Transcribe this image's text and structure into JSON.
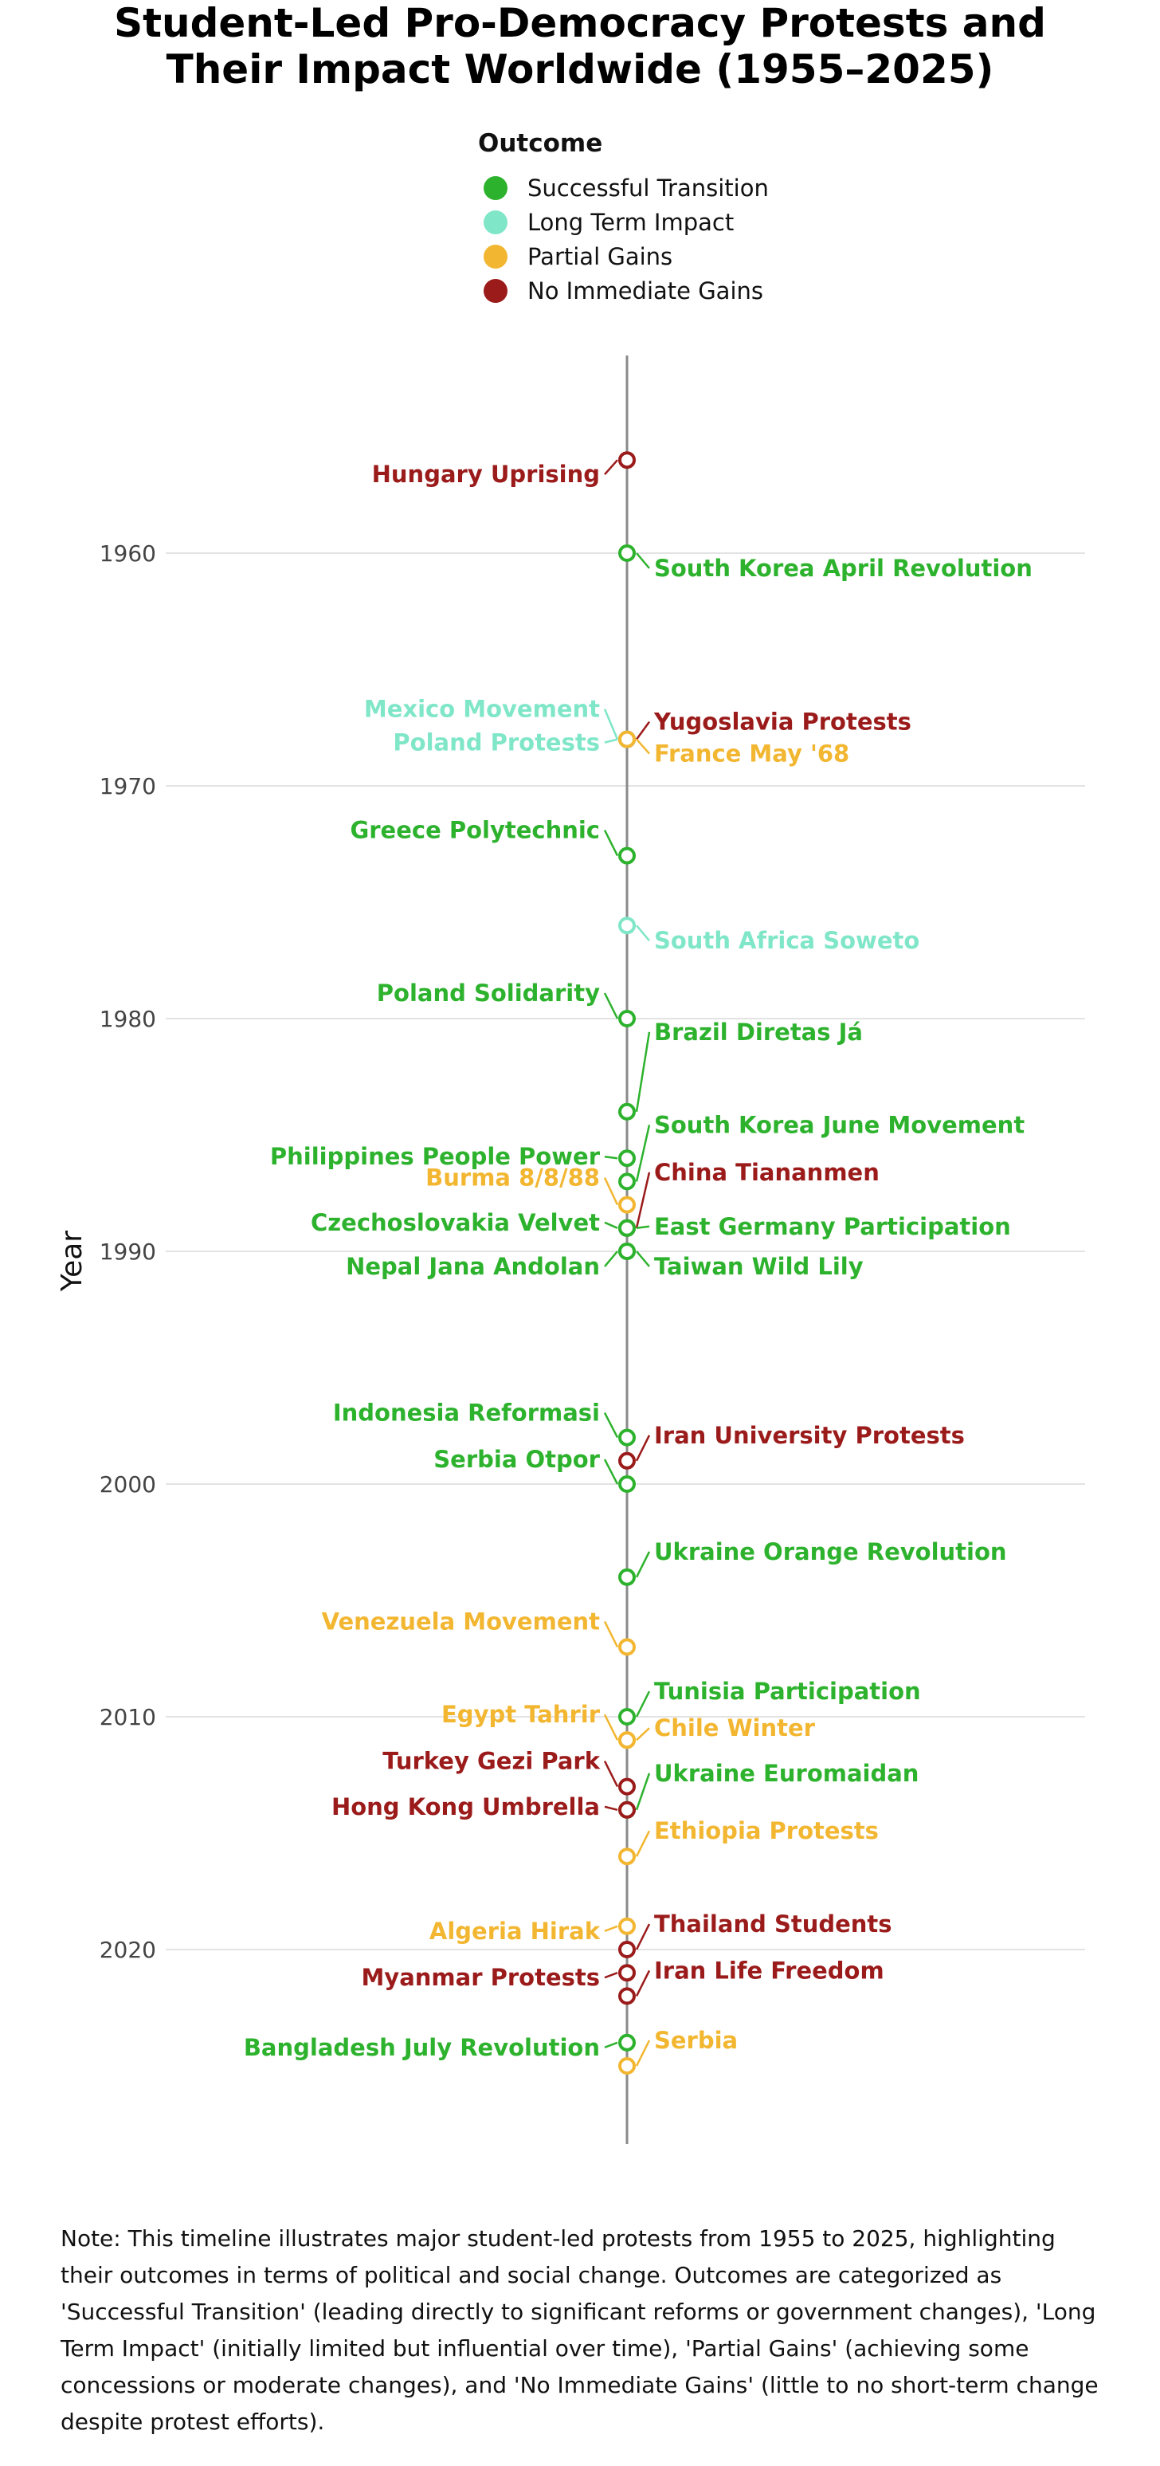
{
  "chart_data": {
    "type": "scatter",
    "title": "Student-Led Pro-Democracy Protests and Their Impact Worldwide (1955–2025)",
    "title_lines": [
      "Student-Led Pro-Democracy Protests and",
      "Their Impact Worldwide (1955–2025)"
    ],
    "ylabel": "Year",
    "xlabel": "",
    "ylim": [
      1951.5,
      2028.5
    ],
    "yticks": [
      1960,
      1970,
      1980,
      1990,
      2000,
      2010,
      2020
    ],
    "grid": true,
    "legend": {
      "title": "Outcome",
      "placement": "top-center",
      "entries": [
        {
          "label": "Successful Transition",
          "color": "#2DB22D"
        },
        {
          "label": "Long Term Impact",
          "color": "#7FE6C8"
        },
        {
          "label": "Partial Gains",
          "color": "#F2B630"
        },
        {
          "label": "No Immediate Gains",
          "color": "#9B1B1B"
        }
      ]
    },
    "colors": {
      "Successful Transition": "#2DB22D",
      "Long Term Impact": "#7FE6C8",
      "Partial Gains": "#F2B630",
      "No Immediate Gains": "#9B1B1B"
    },
    "events": [
      {
        "name": "Hungary Uprising",
        "year": 1956,
        "outcome": "No Immediate Gains",
        "side": "left"
      },
      {
        "name": "South Korea April Revolution",
        "year": 1960,
        "outcome": "Successful Transition",
        "side": "right"
      },
      {
        "name": "Mexico Movement",
        "year": 1968,
        "outcome": "Long Term Impact",
        "side": "left"
      },
      {
        "name": "Yugoslavia Protests",
        "year": 1968,
        "outcome": "No Immediate Gains",
        "side": "right"
      },
      {
        "name": "Poland Protests",
        "year": 1968,
        "outcome": "Long Term Impact",
        "side": "left"
      },
      {
        "name": "France May '68",
        "year": 1968,
        "outcome": "Partial Gains",
        "side": "right"
      },
      {
        "name": "Greece Polytechnic",
        "year": 1973,
        "outcome": "Successful Transition",
        "side": "left"
      },
      {
        "name": "South Africa Soweto",
        "year": 1976,
        "outcome": "Long Term Impact",
        "side": "right"
      },
      {
        "name": "Poland Solidarity",
        "year": 1980,
        "outcome": "Successful Transition",
        "side": "left"
      },
      {
        "name": "Brazil Diretas Já",
        "year": 1984,
        "outcome": "Successful Transition",
        "side": "right"
      },
      {
        "name": "Philippines People Power",
        "year": 1986,
        "outcome": "Successful Transition",
        "side": "left"
      },
      {
        "name": "South Korea June Movement",
        "year": 1987,
        "outcome": "Successful Transition",
        "side": "right"
      },
      {
        "name": "Burma 8/8/88",
        "year": 1988,
        "outcome": "Partial Gains",
        "side": "left"
      },
      {
        "name": "China Tiananmen",
        "year": 1989,
        "outcome": "No Immediate Gains",
        "side": "right"
      },
      {
        "name": "Czechoslovakia Velvet",
        "year": 1989,
        "outcome": "Successful Transition",
        "side": "left"
      },
      {
        "name": "East Germany Participation",
        "year": 1989,
        "outcome": "Successful Transition",
        "side": "right"
      },
      {
        "name": "Nepal Jana Andolan",
        "year": 1990,
        "outcome": "Successful Transition",
        "side": "left"
      },
      {
        "name": "Taiwan Wild Lily",
        "year": 1990,
        "outcome": "Successful Transition",
        "side": "right"
      },
      {
        "name": "Indonesia Reformasi",
        "year": 1998,
        "outcome": "Successful Transition",
        "side": "left"
      },
      {
        "name": "Iran University Protests",
        "year": 1999,
        "outcome": "No Immediate Gains",
        "side": "right"
      },
      {
        "name": "Serbia Otpor",
        "year": 2000,
        "outcome": "Successful Transition",
        "side": "left"
      },
      {
        "name": "Ukraine Orange Revolution",
        "year": 2004,
        "outcome": "Successful Transition",
        "side": "right"
      },
      {
        "name": "Venezuela Movement",
        "year": 2007,
        "outcome": "Partial Gains",
        "side": "left"
      },
      {
        "name": "Tunisia Participation",
        "year": 2010,
        "outcome": "Successful Transition",
        "side": "right"
      },
      {
        "name": "Egypt Tahrir",
        "year": 2011,
        "outcome": "Partial Gains",
        "side": "left"
      },
      {
        "name": "Chile Winter",
        "year": 2011,
        "outcome": "Partial Gains",
        "side": "right"
      },
      {
        "name": "Turkey Gezi Park",
        "year": 2013,
        "outcome": "No Immediate Gains",
        "side": "left"
      },
      {
        "name": "Ukraine Euromaidan",
        "year": 2014,
        "outcome": "Successful Transition",
        "side": "right"
      },
      {
        "name": "Hong Kong Umbrella",
        "year": 2014,
        "outcome": "No Immediate Gains",
        "side": "left"
      },
      {
        "name": "Ethiopia Protests",
        "year": 2016,
        "outcome": "Partial Gains",
        "side": "right"
      },
      {
        "name": "Algeria Hirak",
        "year": 2019,
        "outcome": "Partial Gains",
        "side": "left"
      },
      {
        "name": "Thailand Students",
        "year": 2020,
        "outcome": "No Immediate Gains",
        "side": "right"
      },
      {
        "name": "Myanmar Protests",
        "year": 2021,
        "outcome": "No Immediate Gains",
        "side": "left"
      },
      {
        "name": "Iran Life Freedom",
        "year": 2022,
        "outcome": "No Immediate Gains",
        "side": "right"
      },
      {
        "name": "Bangladesh July Revolution",
        "year": 2024,
        "outcome": "Successful Transition",
        "side": "left"
      },
      {
        "name": "Serbia",
        "year": 2025,
        "outcome": "Partial Gains",
        "side": "right"
      }
    ]
  },
  "note": "Note: This timeline illustrates major student-led protests from 1955 to 2025, highlighting their outcomes in terms of political and social change. Outcomes are categorized as 'Successful Transition' (leading directly to significant reforms or government changes), 'Long Term Impact' (initially limited but influential over time), 'Partial Gains' (achieving some concessions or moderate changes), and 'No Immediate Gains' (little to no short-term change despite protest efforts)."
}
